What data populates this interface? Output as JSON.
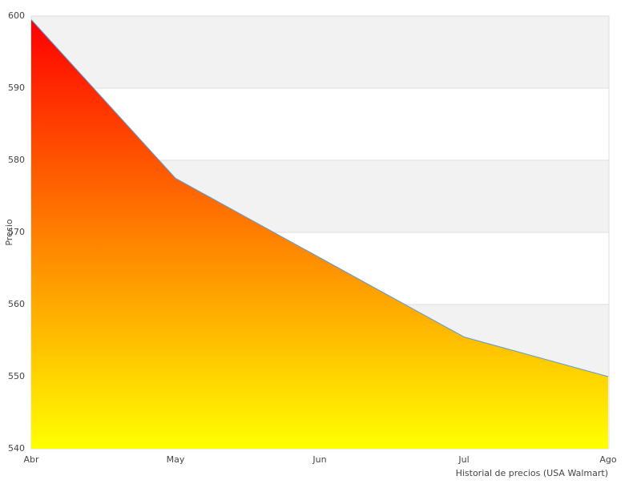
{
  "chart_data": {
    "type": "area",
    "categories": [
      "Abr",
      "May",
      "Jun",
      "Jul",
      "Ago"
    ],
    "values": [
      599.5,
      577.5,
      566.5,
      555.5,
      550
    ],
    "color": "#5b9bd5",
    "gradient": [
      "#ff0000",
      "#ffff00"
    ],
    "ylim": [
      540,
      600
    ],
    "yticks": [
      540,
      550,
      560,
      570,
      580,
      590,
      600
    ],
    "grid": true,
    "y_label": "Precio",
    "x_label": "Historial de precios (USA Walmart)"
  }
}
